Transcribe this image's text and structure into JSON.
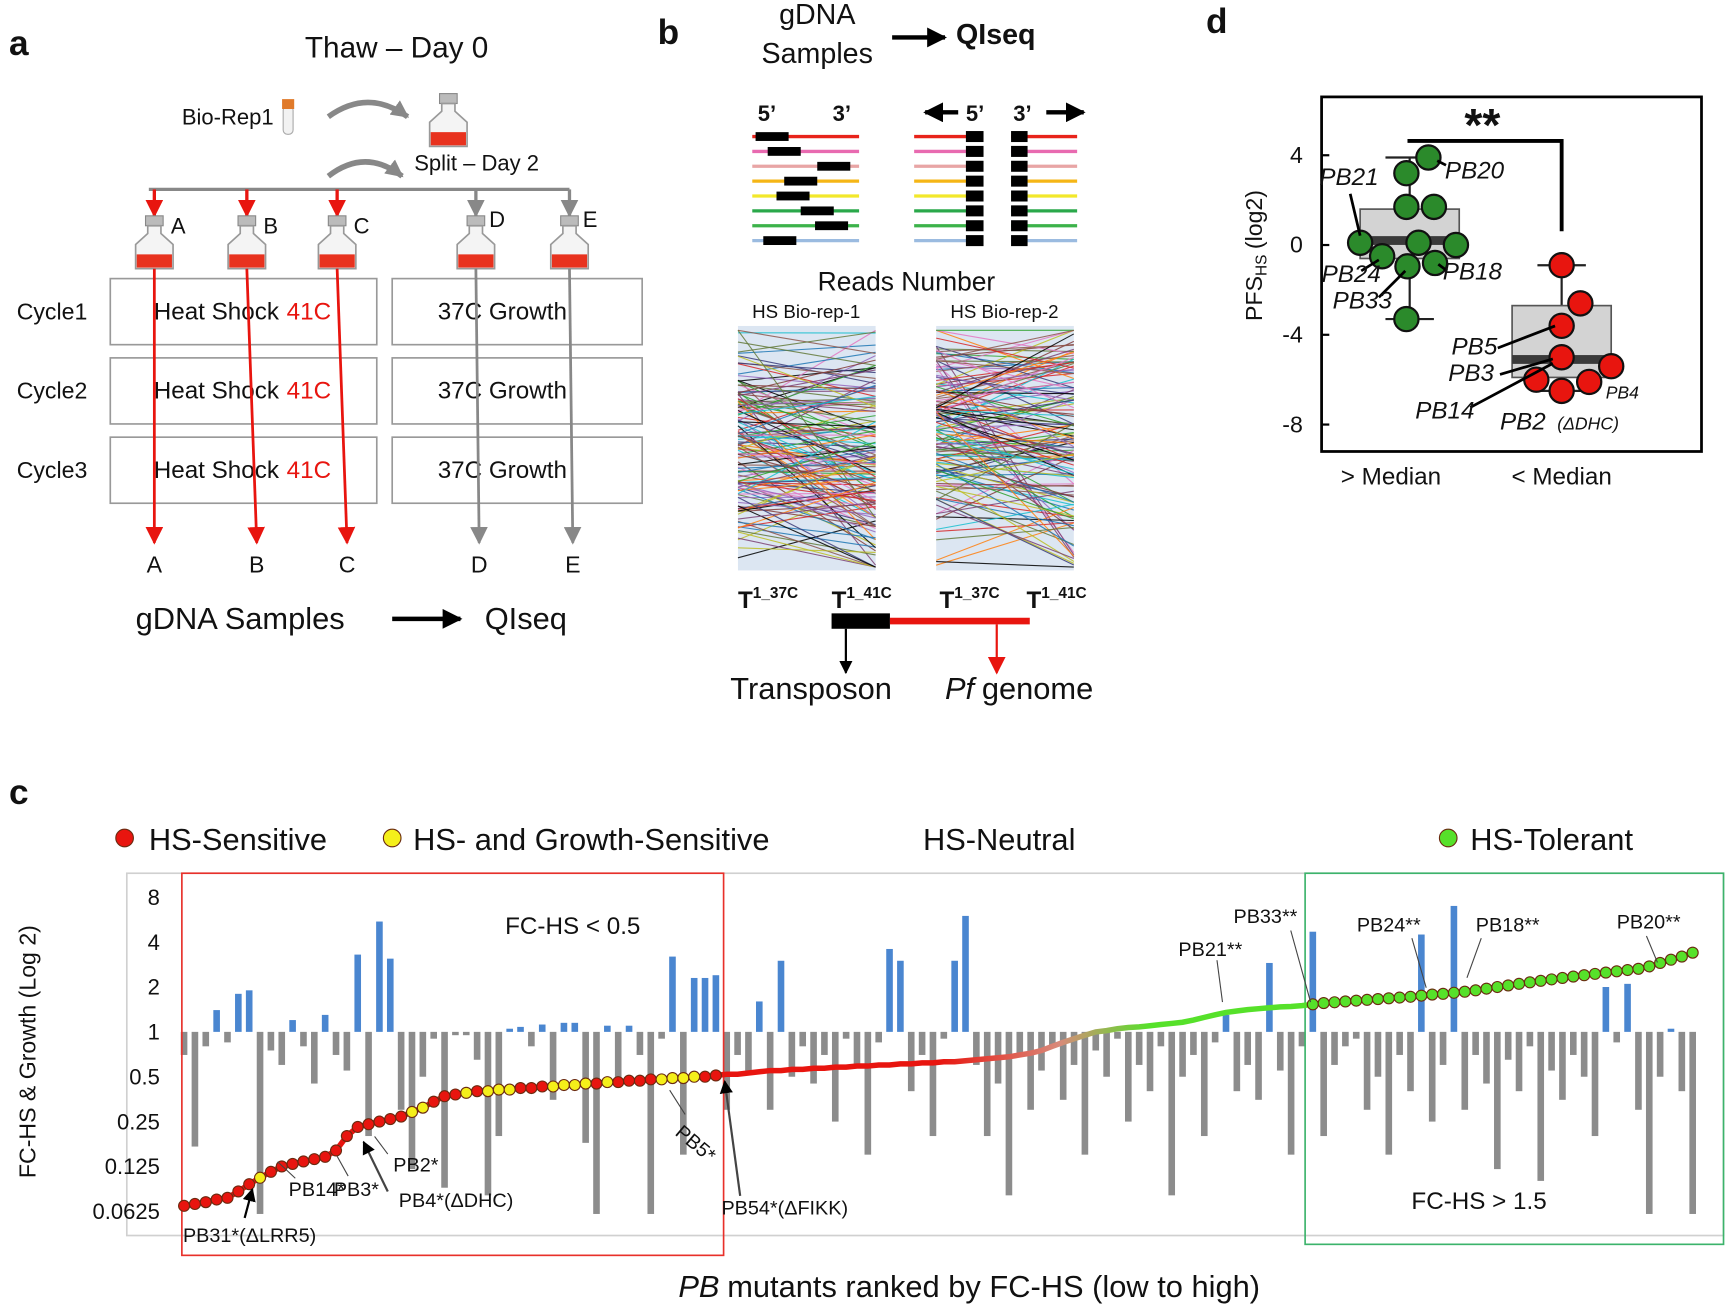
{
  "panel_a": {
    "label": "a",
    "title": "Thaw – Day 0",
    "biorep": "Bio-Rep1",
    "split": "Split – Day 2",
    "flasks": [
      "A",
      "B",
      "C",
      "D",
      "E"
    ],
    "cycles": [
      "Cycle1",
      "Cycle2",
      "Cycle3"
    ],
    "heat_shock": "Heat Shock",
    "heat_temp": "41C",
    "growth": "37C Growth",
    "outputs": [
      "A",
      "B",
      "C",
      "D",
      "E"
    ],
    "samples": "gDNA Samples",
    "qiseq": "QIseq"
  },
  "panel_b": {
    "label": "b",
    "samples": [
      "gDNA",
      "Samples"
    ],
    "qiseq": "QIseq",
    "ends": [
      "5’",
      "3’",
      "5’",
      "3’"
    ],
    "reads": "Reads Number",
    "reps": [
      "HS Bio-rep-1",
      "HS Bio-rep-2"
    ],
    "timepoints": [
      {
        "base": "T",
        "sup": "1_37C"
      },
      {
        "base": "T",
        "sup": "1_41C"
      },
      {
        "base": "T",
        "sup": "1_37C"
      },
      {
        "base": "T",
        "sup": "1_41C"
      }
    ],
    "transposon": "Transposon",
    "genome_italic": "Pf",
    "genome": "genome"
  },
  "chart_data": [
    {
      "type": "bar_line",
      "label": "c",
      "ylabel": "FC-HS & Growth (Log 2)",
      "xlabel_italic": "PB",
      "xlabel": "mutants ranked by FC-HS (low to high)",
      "log_base": 2,
      "ylim": [
        0.043,
        11.6
      ],
      "yticks": [
        0.0625,
        0.125,
        0.25,
        0.5,
        1,
        2,
        4,
        8
      ],
      "grid": false,
      "bar_base": 1,
      "bars": {
        "color": "#4a86d0",
        "below_color": "#8c8c8c",
        "values": [
          0.7,
          0.17,
          0.8,
          1.4,
          0.85,
          1.8,
          1.9,
          0.06,
          0.75,
          0.6,
          1.2,
          0.8,
          0.45,
          1.3,
          0.7,
          0.55,
          3.3,
          0.2,
          5.5,
          3.1,
          0.3,
          0.12,
          0.5,
          0.9,
          0.09,
          0.95,
          0.95,
          0.65,
          0.08,
          0.2,
          1.05,
          1.08,
          0.8,
          1.12,
          0.35,
          1.15,
          1.15,
          0.18,
          0.06,
          1.1,
          0.45,
          1.1,
          0.7,
          0.06,
          0.9,
          3.2,
          0.15,
          2.3,
          2.3,
          2.4,
          0.3,
          0.7,
          0.55,
          1.6,
          0.3,
          3.0,
          0.5,
          0.8,
          0.45,
          0.7,
          0.25,
          0.9,
          0.6,
          0.15,
          0.85,
          3.6,
          3.0,
          0.4,
          0.7,
          0.2,
          0.9,
          3.0,
          6.0,
          0.6,
          0.2,
          0.45,
          0.08,
          0.7,
          0.3,
          0.55,
          0.8,
          0.35,
          0.6,
          0.15,
          0.75,
          0.5,
          0.9,
          0.25,
          0.6,
          0.4,
          0.8,
          0.08,
          0.5,
          0.7,
          0.2,
          0.85,
          1.3,
          0.4,
          0.6,
          0.35,
          2.9,
          0.55,
          0.15,
          0.8,
          4.7,
          0.2,
          0.6,
          0.8,
          0.9,
          0.3,
          0.5,
          0.15,
          0.7,
          0.4,
          4.5,
          0.25,
          0.6,
          7.0,
          0.3,
          0.7,
          0.45,
          0.12,
          0.65,
          0.4,
          0.8,
          0.1,
          0.55,
          0.35,
          0.7,
          0.5,
          0.2,
          2.0,
          0.85,
          2.1,
          0.3,
          0.06,
          0.5,
          1.05,
          0.4,
          0.06
        ]
      },
      "series": [
        {
          "name": "HS-Sensitive",
          "color": "#e8150f",
          "marker": true,
          "values": [
            0.068,
            0.07,
            0.072,
            0.075,
            0.077,
            0.085,
            0.095,
            null,
            0.115,
            0.125,
            0.13,
            0.135,
            0.14,
            0.145,
            0.16,
            0.2,
            0.23,
            0.24,
            0.25,
            0.26,
            0.27,
            null,
            null,
            0.34,
            0.37,
            0.38,
            null,
            0.4,
            null,
            null,
            null,
            0.42,
            0.42,
            0.43,
            null,
            null,
            null,
            null,
            0.45,
            null,
            0.46,
            0.47,
            0.47,
            0.48,
            null,
            null,
            null,
            null,
            0.5,
            0.51,
            null,
            null,
            null,
            null,
            null,
            null,
            null,
            null,
            null,
            null,
            null,
            null,
            null,
            null,
            null,
            null,
            null,
            null,
            null,
            null,
            null,
            null,
            null,
            null,
            null,
            null,
            null,
            null,
            null,
            null,
            null,
            null,
            null,
            null,
            null,
            null,
            null,
            null,
            null,
            null,
            null,
            null,
            null,
            null,
            null,
            null,
            null,
            null,
            null,
            null,
            null,
            null,
            null,
            null,
            null,
            null,
            null,
            null,
            null,
            null,
            null,
            null,
            null,
            null,
            null,
            null,
            null,
            null,
            null,
            null,
            null,
            null,
            null,
            null,
            null,
            null,
            null,
            null,
            null,
            null,
            null,
            null,
            null,
            null,
            null,
            null,
            null,
            null,
            null,
            null
          ]
        },
        {
          "name": "HS- and Growth-Sensitive",
          "color": "#f5ef1a",
          "marker": true,
          "values": [
            null,
            null,
            null,
            null,
            null,
            null,
            null,
            0.105,
            null,
            null,
            null,
            null,
            null,
            null,
            null,
            null,
            null,
            null,
            null,
            null,
            null,
            0.29,
            0.31,
            null,
            null,
            null,
            0.39,
            null,
            0.4,
            0.41,
            0.41,
            null,
            null,
            null,
            0.43,
            0.44,
            0.44,
            0.45,
            null,
            0.46,
            null,
            null,
            null,
            null,
            0.48,
            0.49,
            0.49,
            0.5,
            null,
            null,
            null,
            null,
            null,
            null,
            null,
            null,
            null,
            null,
            null,
            null,
            null,
            null,
            null,
            null,
            null,
            null,
            null,
            null,
            null,
            null,
            null,
            null,
            null,
            null,
            null,
            null,
            null,
            null,
            null,
            null,
            null,
            null,
            null,
            null,
            null,
            null,
            null,
            null,
            null,
            null,
            null,
            null,
            null,
            null,
            null,
            null,
            null,
            null,
            null,
            null,
            null,
            null,
            null,
            null,
            null,
            null,
            null,
            null,
            null,
            null,
            null,
            null,
            null,
            null,
            null,
            null,
            null,
            null,
            null,
            null,
            null,
            null,
            null,
            null,
            null,
            null,
            null,
            null,
            null,
            null,
            null,
            null,
            null,
            null,
            null,
            null,
            null,
            null,
            null,
            null
          ]
        },
        {
          "name": "HS-Neutral",
          "color": "#d98a7a",
          "marker": false,
          "values": [
            null,
            null,
            null,
            null,
            null,
            null,
            null,
            null,
            null,
            null,
            null,
            null,
            null,
            null,
            null,
            null,
            null,
            null,
            null,
            null,
            null,
            null,
            null,
            null,
            null,
            null,
            null,
            null,
            null,
            null,
            null,
            null,
            null,
            null,
            null,
            null,
            null,
            null,
            null,
            null,
            null,
            null,
            null,
            null,
            null,
            null,
            null,
            null,
            null,
            null,
            0.52,
            0.52,
            0.53,
            0.54,
            0.55,
            0.55,
            0.56,
            0.56,
            0.57,
            0.57,
            0.58,
            0.58,
            0.59,
            0.59,
            0.6,
            0.6,
            0.61,
            0.61,
            0.62,
            0.62,
            0.63,
            0.63,
            0.64,
            0.65,
            0.66,
            0.67,
            0.68,
            0.7,
            0.72,
            0.75,
            0.8,
            0.85,
            0.9,
            0.95,
            1,
            1.02,
            1.05,
            1.07,
            1.08,
            1.1,
            1.12,
            1.14,
            1.16,
            1.2,
            1.25,
            1.3,
            1.35,
            1.38,
            1.41,
            1.43,
            1.45,
            1.47,
            1.48,
            1.5,
            null,
            null,
            null,
            null,
            null,
            null,
            null,
            null,
            null,
            null,
            null,
            null,
            null,
            null,
            null,
            null,
            null,
            null,
            null,
            null,
            null,
            null,
            null,
            null,
            null,
            null,
            null,
            null,
            null,
            null,
            null,
            null,
            null,
            null,
            null,
            null
          ]
        },
        {
          "name": "HS-Tolerant",
          "color": "#56e12a",
          "marker": true,
          "values": [
            null,
            null,
            null,
            null,
            null,
            null,
            null,
            null,
            null,
            null,
            null,
            null,
            null,
            null,
            null,
            null,
            null,
            null,
            null,
            null,
            null,
            null,
            null,
            null,
            null,
            null,
            null,
            null,
            null,
            null,
            null,
            null,
            null,
            null,
            null,
            null,
            null,
            null,
            null,
            null,
            null,
            null,
            null,
            null,
            null,
            null,
            null,
            null,
            null,
            null,
            null,
            null,
            null,
            null,
            null,
            null,
            null,
            null,
            null,
            null,
            null,
            null,
            null,
            null,
            null,
            null,
            null,
            null,
            null,
            null,
            null,
            null,
            null,
            null,
            null,
            null,
            null,
            null,
            null,
            null,
            null,
            null,
            null,
            null,
            null,
            null,
            null,
            null,
            null,
            null,
            null,
            null,
            null,
            null,
            null,
            null,
            null,
            null,
            null,
            null,
            null,
            null,
            null,
            null,
            1.53,
            1.56,
            1.58,
            1.6,
            1.62,
            1.64,
            1.66,
            1.68,
            1.7,
            1.72,
            1.75,
            1.78,
            1.8,
            1.83,
            1.86,
            1.9,
            1.95,
            2.0,
            2.05,
            2.1,
            2.15,
            2.2,
            2.25,
            2.3,
            2.35,
            2.4,
            2.45,
            2.5,
            2.55,
            2.6,
            2.65,
            2.75,
            2.9,
            3.05,
            3.2,
            3.4
          ]
        }
      ],
      "regions": [
        {
          "label": "FC-HS < 0.5",
          "color": "#e8302a"
        },
        {
          "label": "FC-HS > 1.5",
          "color": "#3cb36b"
        }
      ],
      "annotations": [
        "PB31*(ΔLRR5)",
        "PB14*",
        "PB3*",
        "PB4*(ΔDHC)",
        "PB2*",
        "PB5*",
        "PB54*(ΔFIKK)",
        "PB21**",
        "PB33**",
        "PB24**",
        "PB18**",
        "PB20**"
      ]
    },
    {
      "type": "box",
      "label": "d",
      "ylabel": "PFS",
      "ylabel_sub": "HS",
      "ylabel_unit": "(log2)",
      "ylim": [
        -9.2,
        6.6
      ],
      "yticks": [
        4,
        0,
        -4,
        -8
      ],
      "categories": [
        "> Median",
        "< Median"
      ],
      "significance": "**",
      "boxes": [
        {
          "whisker_low": -3.3,
          "q1": -0.6,
          "median": 0.2,
          "q3": 1.6,
          "whisker_high": 3.9,
          "color": "#2b8a2b",
          "points": [
            3.9,
            3.2,
            1.7,
            1.7,
            0.1,
            0.1,
            0,
            -0.5,
            -0.95,
            -0.8,
            -3.3
          ],
          "point_labels": [
            "PB21",
            "PB20",
            "PB24",
            "PB18",
            "PB33"
          ]
        },
        {
          "whisker_low": -6.5,
          "q1": -5.9,
          "median": -5.1,
          "q3": -2.7,
          "whisker_high": -0.9,
          "color": "#e8150f",
          "points": [
            -0.9,
            -2.6,
            -3.6,
            -5.0,
            -5.4,
            -6.0,
            -6.1,
            -6.5
          ],
          "point_labels": [
            "PB5",
            "PB3",
            "PB14",
            "PB2",
            "(ΔDHC)",
            "PB4"
          ]
        }
      ]
    }
  ]
}
